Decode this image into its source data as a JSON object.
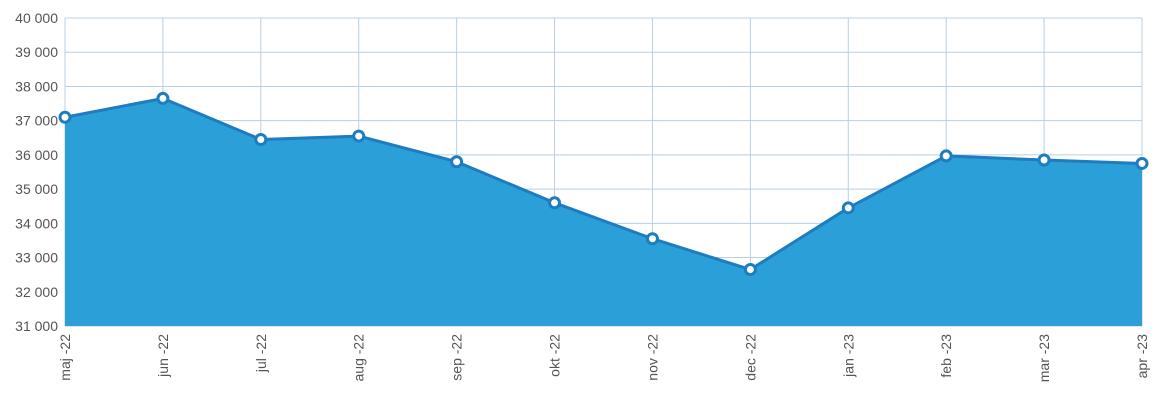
{
  "chart_data": {
    "type": "area",
    "title": "",
    "xlabel": "",
    "ylabel": "",
    "categories": [
      "maj -22",
      "jun -22",
      "jul -22",
      "aug -22",
      "sep -22",
      "okt -22",
      "nov -22",
      "dec -22",
      "jan -23",
      "feb -23",
      "mar -23",
      "apr -23"
    ],
    "series": [
      {
        "values": [
          37100,
          37650,
          36450,
          36550,
          35800,
          34600,
          33550,
          32650,
          34450,
          35970,
          35850,
          35750
        ]
      }
    ],
    "ylim": [
      31000,
      40000
    ],
    "yticks": [
      "31 000",
      "32 000",
      "33 000",
      "34 000",
      "35 000",
      "36 000",
      "37 000",
      "38 000",
      "39 000",
      "40 000"
    ],
    "grid": true,
    "legend": "none",
    "colors": {
      "fill": "#2b9fd8",
      "line": "#1e7cc0",
      "marker_fill": "#ffffff",
      "grid": "#b9cfe0",
      "text": "#555555"
    }
  }
}
